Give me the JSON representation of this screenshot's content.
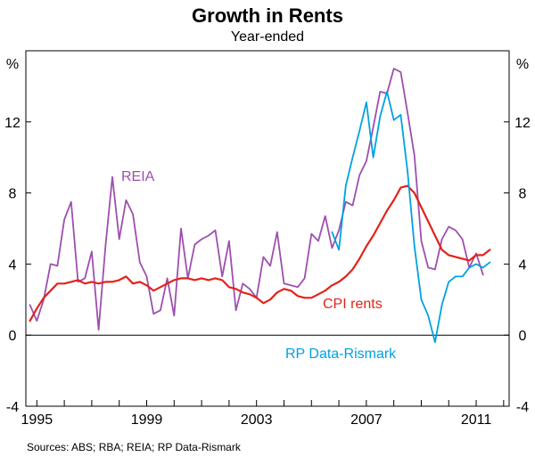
{
  "chart_data": {
    "type": "line",
    "title": "Growth in Rents",
    "subtitle": "Year-ended",
    "y_unit_left": "%",
    "y_unit_right": "%",
    "ylim": [
      -4,
      16
    ],
    "y_ticks": [
      -4,
      0,
      4,
      8,
      12
    ],
    "xlim": [
      1994.6,
      2012.2
    ],
    "x_ticks": [
      {
        "value": 1995,
        "label": "1995"
      },
      {
        "value": 1999,
        "label": "1999"
      },
      {
        "value": 2003,
        "label": "2003"
      },
      {
        "value": 2007,
        "label": "2007"
      },
      {
        "value": 2011,
        "label": "2011"
      }
    ],
    "source": "Sources: ABS; RBA; REIA; RP Data-Rismark",
    "series": [
      {
        "name": "REIA",
        "label": "REIA",
        "color": "#9e4fae",
        "x": [
          1994.75,
          1995.0,
          1995.25,
          1995.5,
          1995.75,
          1996.0,
          1996.25,
          1996.5,
          1996.75,
          1997.0,
          1997.25,
          1997.5,
          1997.75,
          1998.0,
          1998.25,
          1998.5,
          1998.75,
          1999.0,
          1999.25,
          1999.5,
          1999.75,
          2000.0,
          2000.25,
          2000.5,
          2000.75,
          2001.0,
          2001.25,
          2001.5,
          2001.75,
          2002.0,
          2002.25,
          2002.5,
          2002.75,
          2003.0,
          2003.25,
          2003.5,
          2003.75,
          2004.0,
          2004.25,
          2004.5,
          2004.75,
          2005.0,
          2005.25,
          2005.5,
          2005.75,
          2006.0,
          2006.25,
          2006.5,
          2006.75,
          2007.0,
          2007.25,
          2007.5,
          2007.75,
          2008.0,
          2008.25,
          2008.5,
          2008.75,
          2009.0,
          2009.25,
          2009.5,
          2009.75,
          2010.0,
          2010.25,
          2010.5,
          2010.75,
          2011.0,
          2011.25
        ],
        "values": [
          1.7,
          0.8,
          2.0,
          4.0,
          3.9,
          6.5,
          7.5,
          3.0,
          3.2,
          4.7,
          0.3,
          5.0,
          8.9,
          5.4,
          7.6,
          6.8,
          4.1,
          3.3,
          1.2,
          1.4,
          3.2,
          1.1,
          6.0,
          3.2,
          5.1,
          5.4,
          5.6,
          5.9,
          3.3,
          5.3,
          1.4,
          2.9,
          2.6,
          2.1,
          4.4,
          3.9,
          5.8,
          2.9,
          2.8,
          2.7,
          3.2,
          5.7,
          5.3,
          6.7,
          4.9,
          5.9,
          7.5,
          7.3,
          9.0,
          9.8,
          11.7,
          13.7,
          13.6,
          15.0,
          14.8,
          12.5,
          10.1,
          5.3,
          3.8,
          3.7,
          5.4,
          6.1,
          5.9,
          5.4,
          3.8,
          4.6,
          3.4
        ]
      },
      {
        "name": "CPI rents",
        "label": "CPI rents",
        "color": "#e2231a",
        "x": [
          1994.75,
          1995.0,
          1995.25,
          1995.5,
          1995.75,
          1996.0,
          1996.25,
          1996.5,
          1996.75,
          1997.0,
          1997.25,
          1997.5,
          1997.75,
          1998.0,
          1998.25,
          1998.5,
          1998.75,
          1999.0,
          1999.25,
          1999.5,
          1999.75,
          2000.0,
          2000.25,
          2000.5,
          2000.75,
          2001.0,
          2001.25,
          2001.5,
          2001.75,
          2002.0,
          2002.25,
          2002.5,
          2002.75,
          2003.0,
          2003.25,
          2003.5,
          2003.75,
          2004.0,
          2004.25,
          2004.5,
          2004.75,
          2005.0,
          2005.25,
          2005.5,
          2005.75,
          2006.0,
          2006.25,
          2006.5,
          2006.75,
          2007.0,
          2007.25,
          2007.5,
          2007.75,
          2008.0,
          2008.25,
          2008.5,
          2008.75,
          2009.0,
          2009.25,
          2009.5,
          2009.75,
          2010.0,
          2010.25,
          2010.5,
          2010.75,
          2011.0,
          2011.25,
          2011.5
        ],
        "values": [
          0.8,
          1.5,
          2.1,
          2.5,
          2.9,
          2.9,
          3.0,
          3.1,
          2.9,
          3.0,
          2.9,
          3.0,
          3.0,
          3.1,
          3.3,
          2.9,
          3.0,
          2.8,
          2.5,
          2.7,
          2.9,
          3.1,
          3.2,
          3.2,
          3.1,
          3.2,
          3.1,
          3.2,
          3.1,
          2.7,
          2.6,
          2.4,
          2.3,
          2.1,
          1.8,
          2.0,
          2.4,
          2.6,
          2.5,
          2.2,
          2.1,
          2.1,
          2.3,
          2.5,
          2.8,
          3.0,
          3.3,
          3.7,
          4.3,
          5.0,
          5.6,
          6.3,
          7.0,
          7.6,
          8.3,
          8.4,
          8.0,
          7.2,
          6.4,
          5.6,
          4.8,
          4.5,
          4.4,
          4.3,
          4.2,
          4.5,
          4.5,
          4.8
        ]
      },
      {
        "name": "RP Data-Rismark",
        "label": "RP Data-Rismark",
        "color": "#00a1e0",
        "x": [
          2005.75,
          2006.0,
          2006.25,
          2006.5,
          2006.75,
          2007.0,
          2007.25,
          2007.5,
          2007.75,
          2008.0,
          2008.25,
          2008.5,
          2008.75,
          2009.0,
          2009.25,
          2009.5,
          2009.75,
          2010.0,
          2010.25,
          2010.5,
          2010.75,
          2011.0,
          2011.25,
          2011.5
        ],
        "values": [
          5.8,
          4.8,
          8.4,
          10.0,
          11.5,
          13.1,
          10.0,
          12.3,
          13.7,
          12.1,
          12.4,
          9.2,
          5.0,
          2.0,
          1.1,
          -0.4,
          1.7,
          3.0,
          3.3,
          3.3,
          3.8,
          4.0,
          3.8,
          4.1
        ]
      }
    ]
  }
}
